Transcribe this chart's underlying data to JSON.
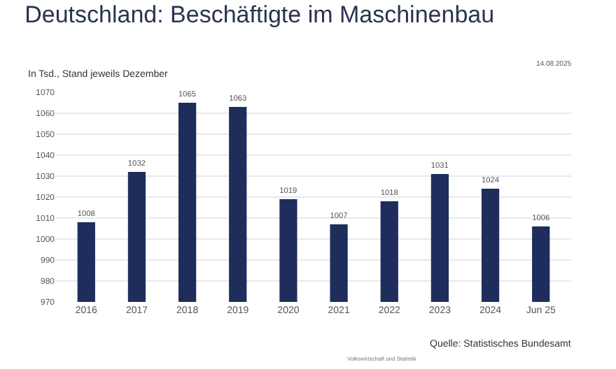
{
  "chart_data": {
    "type": "bar",
    "title": "Deutschland: Beschäftigte im Maschinenbau",
    "subtitle": "In Tsd., Stand jeweils Dezember",
    "categories": [
      "2016",
      "2017",
      "2018",
      "2019",
      "2020",
      "2021",
      "2022",
      "2023",
      "2024",
      "Jun 25"
    ],
    "values": [
      1008,
      1032,
      1065,
      1063,
      1019,
      1007,
      1018,
      1031,
      1024,
      1006
    ],
    "color": "#1f2d5c",
    "data_labels": true,
    "ylim": [
      970,
      1070
    ],
    "yticks": [
      970,
      980,
      990,
      1000,
      1010,
      1020,
      1030,
      1040,
      1050,
      1060,
      1070
    ],
    "grid": "y",
    "annotations": [
      "14.08.2025",
      "Quelle: Statistisches Bundesamt",
      "Volkswirtschaft und Statistik"
    ]
  }
}
